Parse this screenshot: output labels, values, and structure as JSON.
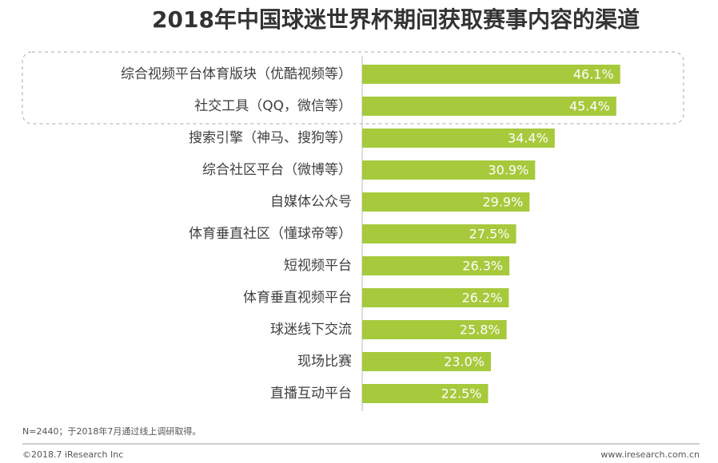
{
  "chart_data": {
    "type": "bar",
    "orientation": "horizontal",
    "title": "2018年中国球迷世界杯期间获取赛事内容的渠道",
    "categories": [
      "综合视频平台体育版块（优酷视频等）",
      "社交工具（QQ，微信等）",
      "搜索引擎（神马、搜狗等）",
      "综合社区平台（微博等）",
      "自媒体公众号",
      "体育垂直社区（懂球帝等）",
      "短视频平台",
      "体育垂直视频平台",
      "球迷线下交流",
      "现场比赛",
      "直播互动平台"
    ],
    "values": [
      46.1,
      45.4,
      34.4,
      30.9,
      29.9,
      27.5,
      26.3,
      26.2,
      25.8,
      23.0,
      22.5
    ],
    "value_labels": [
      "46.1%",
      "45.4%",
      "34.4%",
      "30.9%",
      "29.9%",
      "27.5%",
      "26.3%",
      "26.2%",
      "25.8%",
      "23.0%",
      "22.5%"
    ],
    "color": "#a7c93c",
    "footnote": "N=2440；于2018年7月通过线上调研取得。",
    "copyright": "©2018.7 iResearch Inc",
    "website": "www.iresearch.com.cn"
  }
}
